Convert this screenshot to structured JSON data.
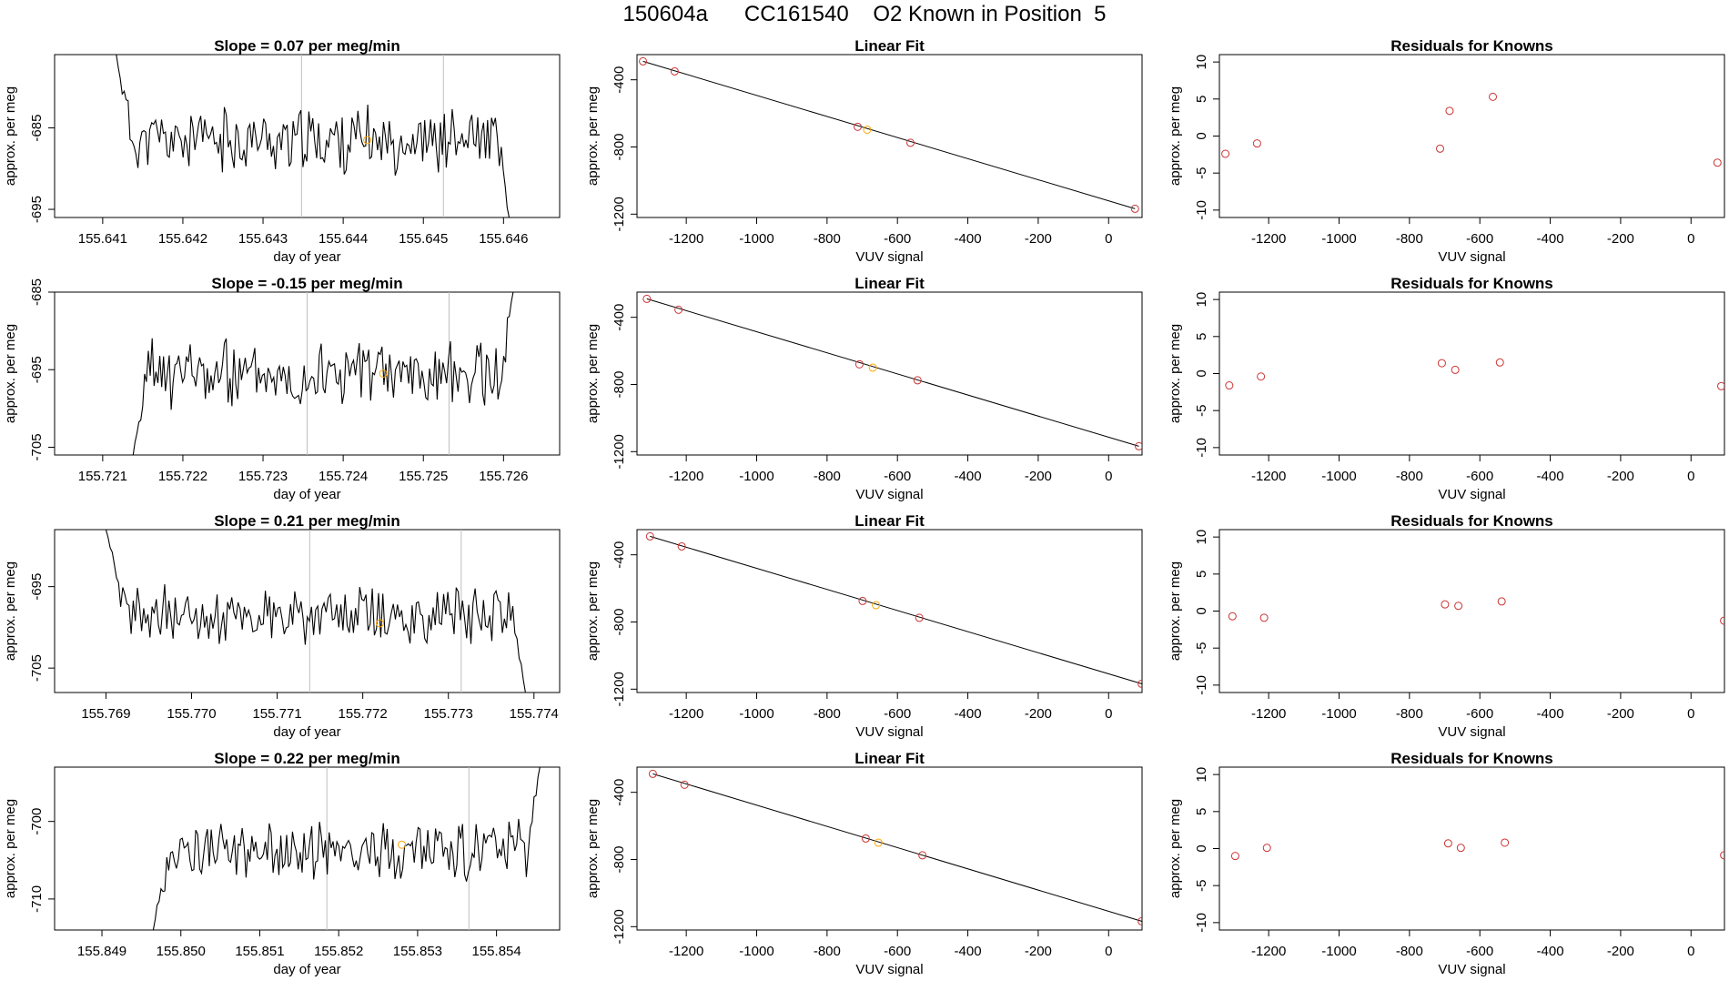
{
  "figure_title": "150604a      CC161540    O2 Known in Position  5",
  "colors": {
    "trace": "#000000",
    "fit_line": "#000000",
    "known_points": "#cd3333",
    "marker": "#ffa500",
    "guides": "#bebebe"
  },
  "chart_data": [
    {
      "type": "line",
      "row": 1,
      "title": "Slope =  0.07  per meg/min",
      "xlabel": "day of year",
      "ylabel": "approx. per meg",
      "xlim": [
        155.6404,
        155.6467
      ],
      "ylim": [
        -696,
        -676
      ],
      "xticks": [
        "155.641",
        "155.642",
        "155.643",
        "155.644",
        "155.645",
        "155.646"
      ],
      "yticks": [
        "-685",
        "-695"
      ],
      "vlines": [
        155.64348,
        155.64525
      ],
      "marker": {
        "x": 155.6443,
        "y": -686.5
      },
      "trace": {
        "x_start": 155.64117,
        "x_end": 155.64607,
        "level": -686.5,
        "amp": 3.2,
        "start_y": -676,
        "end_y": -696,
        "seed": 11
      }
    },
    {
      "type": "scatter",
      "row": 1,
      "title": "Linear Fit",
      "xlabel": "VUV signal",
      "ylabel": "approx. per meg",
      "xlim": [
        -1340,
        95
      ],
      "ylim": [
        -1220,
        -250
      ],
      "xticks": [
        "-1200",
        "-1000",
        "-800",
        "-600",
        "-400",
        "-200",
        "0"
      ],
      "yticks": [
        "-400",
        "-800",
        "-1200"
      ],
      "points": [
        [
          -1323,
          -290
        ],
        [
          -1233,
          -350
        ],
        [
          -713,
          -680
        ],
        [
          -563,
          -775
        ],
        [
          75,
          -1168
        ]
      ],
      "highlight": [
        -686,
        -697
      ],
      "fit_line": [
        [
          -1323,
          -290
        ],
        [
          75,
          -1168
        ]
      ]
    },
    {
      "type": "scatter",
      "row": 1,
      "title": "Residuals for Knowns",
      "xlabel": "VUV signal",
      "ylabel": "approx. per meg",
      "xlim": [
        -1340,
        95
      ],
      "ylim": [
        -11,
        11
      ],
      "xticks": [
        "-1200",
        "-1000",
        "-800",
        "-600",
        "-400",
        "-200",
        "0"
      ],
      "yticks": [
        "10",
        "5",
        "0",
        "-5",
        "-10"
      ],
      "points": [
        [
          -1323,
          -2.4
        ],
        [
          -1233,
          -1.0
        ],
        [
          -713,
          -1.7
        ],
        [
          -686,
          3.4
        ],
        [
          -563,
          5.3
        ],
        [
          75,
          -3.6
        ]
      ]
    },
    {
      "type": "line",
      "row": 2,
      "title": "Slope =  -0.15  per meg/min",
      "xlabel": "day of year",
      "ylabel": "approx. per meg",
      "xlim": [
        155.7204,
        155.7267
      ],
      "ylim": [
        -706,
        -685
      ],
      "xticks": [
        "155.721",
        "155.722",
        "155.723",
        "155.724",
        "155.725",
        "155.726"
      ],
      "yticks": [
        "-685",
        "-695",
        "-705"
      ],
      "vlines": [
        155.72355,
        155.72532
      ],
      "marker": {
        "x": 155.7245,
        "y": -695.5
      },
      "trace": {
        "x_start": 155.72138,
        "x_end": 155.72612,
        "level": -695.5,
        "amp": 3.6,
        "start_y": -706,
        "end_y": -685,
        "seed": 23
      }
    },
    {
      "type": "scatter",
      "row": 2,
      "title": "Linear Fit",
      "xlabel": "VUV signal",
      "ylabel": "approx. per meg",
      "xlim": [
        -1340,
        95
      ],
      "ylim": [
        -1220,
        -250
      ],
      "xticks": [
        "-1200",
        "-1000",
        "-800",
        "-600",
        "-400",
        "-200",
        "0"
      ],
      "yticks": [
        "-400",
        "-800",
        "-1200"
      ],
      "points": [
        [
          -1312,
          -290
        ],
        [
          -1222,
          -355
        ],
        [
          -708,
          -680
        ],
        [
          -543,
          -775
        ],
        [
          86,
          -1168
        ]
      ],
      "highlight": [
        -670,
        -700
      ],
      "fit_line": [
        [
          -1312,
          -290
        ],
        [
          86,
          -1168
        ]
      ]
    },
    {
      "type": "scatter",
      "row": 2,
      "title": "Residuals for Knowns",
      "xlabel": "VUV signal",
      "ylabel": "approx. per meg",
      "xlim": [
        -1340,
        95
      ],
      "ylim": [
        -11,
        11
      ],
      "xticks": [
        "-1200",
        "-1000",
        "-800",
        "-600",
        "-400",
        "-200",
        "0"
      ],
      "yticks": [
        "10",
        "5",
        "0",
        "-5",
        "-10"
      ],
      "points": [
        [
          -1312,
          -1.6
        ],
        [
          -1222,
          -0.4
        ],
        [
          -708,
          1.4
        ],
        [
          -670,
          0.5
        ],
        [
          -543,
          1.5
        ],
        [
          86,
          -1.7
        ]
      ]
    },
    {
      "type": "line",
      "row": 3,
      "title": "Slope =  0.21  per meg/min",
      "xlabel": "day of year",
      "ylabel": "approx. per meg",
      "xlim": [
        155.7684,
        155.7743
      ],
      "ylim": [
        -708,
        -688
      ],
      "xticks": [
        "155.769",
        "155.770",
        "155.771",
        "155.772",
        "155.773",
        "155.774"
      ],
      "yticks": [
        "-695",
        "-705"
      ],
      "vlines": [
        155.77138,
        155.77315
      ],
      "marker": {
        "x": 155.7722,
        "y": -699.5
      },
      "trace": {
        "x_start": 155.769,
        "x_end": 155.7739,
        "level": -698.5,
        "amp": 2.8,
        "start_y": -688,
        "end_y": -708,
        "seed": 37
      }
    },
    {
      "type": "scatter",
      "row": 3,
      "title": "Linear Fit",
      "xlabel": "VUV signal",
      "ylabel": "approx. per meg",
      "xlim": [
        -1340,
        95
      ],
      "ylim": [
        -1220,
        -250
      ],
      "xticks": [
        "-1200",
        "-1000",
        "-800",
        "-600",
        "-400",
        "-200",
        "0"
      ],
      "yticks": [
        "-400",
        "-800",
        "-1200"
      ],
      "points": [
        [
          -1303,
          -290
        ],
        [
          -1213,
          -350
        ],
        [
          -699,
          -675
        ],
        [
          -538,
          -775
        ],
        [
          94,
          -1168
        ]
      ],
      "highlight": [
        -661,
        -700
      ],
      "fit_line": [
        [
          -1303,
          -290
        ],
        [
          94,
          -1168
        ]
      ]
    },
    {
      "type": "scatter",
      "row": 3,
      "title": "Residuals for Knowns",
      "xlabel": "VUV signal",
      "ylabel": "approx. per meg",
      "xlim": [
        -1340,
        95
      ],
      "ylim": [
        -11,
        11
      ],
      "xticks": [
        "-1200",
        "-1000",
        "-800",
        "-600",
        "-400",
        "-200",
        "0"
      ],
      "yticks": [
        "10",
        "5",
        "0",
        "-5",
        "-10"
      ],
      "points": [
        [
          -1303,
          -0.7
        ],
        [
          -1213,
          -0.9
        ],
        [
          -699,
          0.9
        ],
        [
          -661,
          0.7
        ],
        [
          -538,
          1.3
        ],
        [
          94,
          -1.3
        ]
      ]
    },
    {
      "type": "line",
      "row": 4,
      "title": "Slope =  0.22  per meg/min",
      "xlabel": "day of year",
      "ylabel": "approx. per meg",
      "xlim": [
        155.8484,
        155.8548
      ],
      "ylim": [
        -714,
        -693
      ],
      "xticks": [
        "155.849",
        "155.850",
        "155.851",
        "155.852",
        "155.853",
        "155.854"
      ],
      "yticks": [
        "-700",
        "-710"
      ],
      "vlines": [
        155.85185,
        155.85365
      ],
      "marker": {
        "x": 155.8528,
        "y": -703
      },
      "trace": {
        "x_start": 155.84965,
        "x_end": 155.85455,
        "level": -703.8,
        "amp": 3.0,
        "start_y": -714,
        "end_y": -693,
        "seed": 53
      }
    },
    {
      "type": "scatter",
      "row": 4,
      "title": "Linear Fit",
      "xlabel": "VUV signal",
      "ylabel": "approx. per meg",
      "xlim": [
        -1340,
        95
      ],
      "ylim": [
        -1220,
        -250
      ],
      "xticks": [
        "-1200",
        "-1000",
        "-800",
        "-600",
        "-400",
        "-200",
        "0"
      ],
      "yticks": [
        "-400",
        "-800",
        "-1200"
      ],
      "points": [
        [
          -1295,
          -290
        ],
        [
          -1205,
          -355
        ],
        [
          -690,
          -675
        ],
        [
          -529,
          -775
        ],
        [
          94,
          -1168
        ]
      ],
      "highlight": [
        -654,
        -700
      ],
      "fit_line": [
        [
          -1295,
          -290
        ],
        [
          94,
          -1168
        ]
      ]
    },
    {
      "type": "scatter",
      "row": 4,
      "title": "Residuals for Knowns",
      "xlabel": "VUV signal",
      "ylabel": "approx. per meg",
      "xlim": [
        -1340,
        95
      ],
      "ylim": [
        -11,
        11
      ],
      "xticks": [
        "-1200",
        "-1000",
        "-800",
        "-600",
        "-400",
        "-200",
        "0"
      ],
      "yticks": [
        "10",
        "5",
        "0",
        "-5",
        "-10"
      ],
      "points": [
        [
          -1295,
          -1.0
        ],
        [
          -1205,
          0.1
        ],
        [
          -690,
          0.7
        ],
        [
          -654,
          0.1
        ],
        [
          -529,
          0.8
        ],
        [
          94,
          -0.9
        ]
      ]
    }
  ]
}
